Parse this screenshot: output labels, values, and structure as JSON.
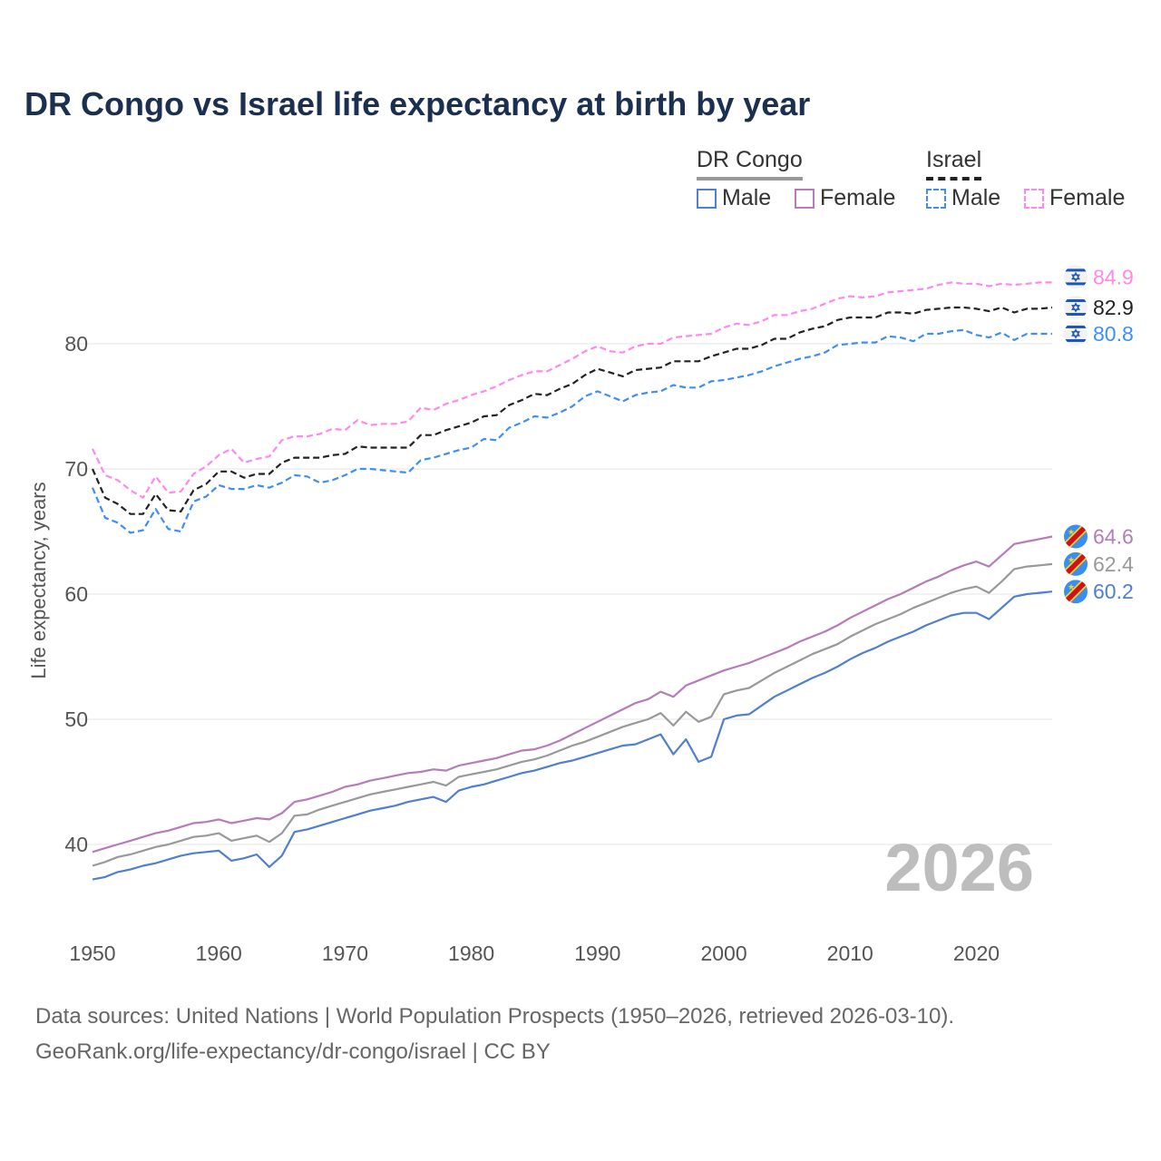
{
  "chart_data": {
    "type": "line",
    "title": "DR Congo vs Israel life expectancy at birth by year",
    "xlabel": "",
    "ylabel": "Life expectancy, years",
    "xlim": [
      1950,
      2026
    ],
    "ylim": [
      35,
      87
    ],
    "x_ticks": [
      1950,
      1960,
      1970,
      1980,
      1990,
      2000,
      2010,
      2020
    ],
    "y_ticks": [
      40,
      50,
      60,
      70,
      80
    ],
    "grid": true,
    "legend_placement": "top-right",
    "legend": {
      "groups": [
        {
          "name": "DR Congo",
          "items": [
            "Male",
            "Female"
          ]
        },
        {
          "name": "Israel",
          "items": [
            "Male",
            "Female"
          ]
        }
      ]
    },
    "watermark_year": "2026",
    "x_start": 1950,
    "series": [
      {
        "name": "DR Congo Female",
        "country": "DR Congo",
        "flag": "drc",
        "dashed": false,
        "color": "#b67bb9",
        "end_label": "64.6",
        "values": [
          39.4,
          39.7,
          40.0,
          40.3,
          40.6,
          40.9,
          41.1,
          41.4,
          41.7,
          41.8,
          42.0,
          41.7,
          41.9,
          42.1,
          42.0,
          42.5,
          43.4,
          43.6,
          43.9,
          44.2,
          44.6,
          44.8,
          45.1,
          45.3,
          45.5,
          45.7,
          45.8,
          46.0,
          45.9,
          46.3,
          46.5,
          46.7,
          46.9,
          47.2,
          47.5,
          47.6,
          47.9,
          48.3,
          48.8,
          49.3,
          49.8,
          50.3,
          50.8,
          51.3,
          51.6,
          52.2,
          51.8,
          52.7,
          53.1,
          53.5,
          53.9,
          54.2,
          54.5,
          54.9,
          55.3,
          55.7,
          56.2,
          56.6,
          57.0,
          57.5,
          58.1,
          58.6,
          59.1,
          59.6,
          60.0,
          60.5,
          61.0,
          61.4,
          61.9,
          62.3,
          62.6,
          62.2,
          63.1,
          64.0,
          64.2,
          64.4,
          64.6
        ]
      },
      {
        "name": "DR Congo Total",
        "country": "DR Congo",
        "flag": "drc",
        "dashed": false,
        "color": "#999999",
        "end_label": "62.4",
        "values": [
          38.3,
          38.6,
          39.0,
          39.2,
          39.5,
          39.8,
          40.0,
          40.3,
          40.6,
          40.7,
          40.9,
          40.3,
          40.5,
          40.7,
          40.2,
          40.9,
          42.3,
          42.4,
          42.8,
          43.1,
          43.4,
          43.7,
          44.0,
          44.2,
          44.4,
          44.6,
          44.8,
          45.0,
          44.7,
          45.4,
          45.6,
          45.8,
          46.0,
          46.3,
          46.6,
          46.8,
          47.1,
          47.5,
          47.9,
          48.2,
          48.6,
          49.0,
          49.4,
          49.7,
          50.0,
          50.5,
          49.5,
          50.6,
          49.8,
          50.2,
          52.0,
          52.3,
          52.5,
          53.1,
          53.7,
          54.2,
          54.7,
          55.2,
          55.6,
          56.0,
          56.6,
          57.1,
          57.6,
          58.0,
          58.4,
          58.9,
          59.3,
          59.7,
          60.1,
          60.4,
          60.6,
          60.1,
          61.0,
          62.0,
          62.2,
          62.3,
          62.4
        ]
      },
      {
        "name": "DR Congo Male",
        "country": "DR Congo",
        "flag": "drc",
        "dashed": false,
        "color": "#4f7fce",
        "end_label": "60.2",
        "values": [
          37.2,
          37.4,
          37.8,
          38.0,
          38.3,
          38.5,
          38.8,
          39.1,
          39.3,
          39.4,
          39.5,
          38.7,
          38.9,
          39.2,
          38.2,
          39.1,
          41.0,
          41.2,
          41.5,
          41.8,
          42.1,
          42.4,
          42.7,
          42.9,
          43.1,
          43.4,
          43.6,
          43.8,
          43.4,
          44.3,
          44.6,
          44.8,
          45.1,
          45.4,
          45.7,
          45.9,
          46.2,
          46.5,
          46.7,
          47.0,
          47.3,
          47.6,
          47.9,
          48.0,
          48.4,
          48.8,
          47.2,
          48.4,
          46.6,
          47.0,
          50.0,
          50.3,
          50.4,
          51.1,
          51.8,
          52.3,
          52.8,
          53.3,
          53.7,
          54.2,
          54.8,
          55.3,
          55.7,
          56.2,
          56.6,
          57.0,
          57.5,
          57.9,
          58.3,
          58.5,
          58.5,
          58.0,
          58.9,
          59.8,
          60.0,
          60.1,
          60.2
        ]
      },
      {
        "name": "Israel Female",
        "country": "Israel",
        "flag": "israel",
        "dashed": true,
        "color": "#ff88ee",
        "end_label": "84.9",
        "values": [
          71.6,
          69.5,
          69.1,
          68.3,
          67.7,
          69.4,
          68.1,
          68.2,
          69.6,
          70.2,
          71.1,
          71.6,
          70.5,
          70.8,
          71.0,
          72.3,
          72.6,
          72.6,
          72.8,
          73.2,
          73.1,
          73.9,
          73.5,
          73.6,
          73.6,
          73.8,
          74.9,
          74.7,
          75.2,
          75.5,
          75.9,
          76.2,
          76.6,
          77.1,
          77.5,
          77.8,
          77.8,
          78.3,
          78.8,
          79.4,
          79.8,
          79.4,
          79.3,
          79.8,
          80.0,
          80.0,
          80.5,
          80.6,
          80.7,
          80.8,
          81.3,
          81.6,
          81.5,
          81.8,
          82.3,
          82.3,
          82.6,
          82.8,
          83.2,
          83.6,
          83.8,
          83.7,
          83.8,
          84.1,
          84.2,
          84.3,
          84.4,
          84.7,
          84.9,
          84.8,
          84.8,
          84.6,
          84.8,
          84.7,
          84.8,
          84.9,
          84.9
        ]
      },
      {
        "name": "Israel Total",
        "country": "Israel",
        "flag": "israel",
        "dashed": true,
        "color": "#222222",
        "end_label": "82.9",
        "values": [
          70.0,
          67.7,
          67.2,
          66.4,
          66.4,
          68.0,
          66.7,
          66.6,
          68.3,
          68.8,
          69.8,
          69.8,
          69.3,
          69.6,
          69.6,
          70.5,
          70.9,
          70.9,
          70.9,
          71.1,
          71.2,
          71.8,
          71.7,
          71.7,
          71.7,
          71.7,
          72.7,
          72.7,
          73.1,
          73.4,
          73.7,
          74.2,
          74.3,
          75.1,
          75.5,
          76.0,
          75.9,
          76.4,
          76.8,
          77.5,
          78.0,
          77.7,
          77.4,
          77.9,
          78.0,
          78.1,
          78.6,
          78.6,
          78.6,
          79.0,
          79.3,
          79.6,
          79.6,
          79.9,
          80.4,
          80.4,
          80.9,
          81.2,
          81.4,
          81.9,
          82.1,
          82.1,
          82.1,
          82.5,
          82.5,
          82.4,
          82.7,
          82.8,
          82.9,
          82.9,
          82.8,
          82.6,
          82.9,
          82.5,
          82.8,
          82.8,
          82.9
        ]
      },
      {
        "name": "Israel Male",
        "country": "Israel",
        "flag": "israel",
        "dashed": true,
        "color": "#3d8ef5",
        "end_label": "80.8",
        "values": [
          68.5,
          66.1,
          65.7,
          64.9,
          65.1,
          66.8,
          65.2,
          65.0,
          67.4,
          67.8,
          68.7,
          68.4,
          68.4,
          68.7,
          68.5,
          68.9,
          69.5,
          69.4,
          68.9,
          69.1,
          69.5,
          70.0,
          70.0,
          69.9,
          69.8,
          69.7,
          70.7,
          70.9,
          71.2,
          71.5,
          71.7,
          72.4,
          72.3,
          73.3,
          73.7,
          74.2,
          74.1,
          74.5,
          75.0,
          75.8,
          76.2,
          75.8,
          75.4,
          75.9,
          76.1,
          76.2,
          76.7,
          76.5,
          76.5,
          77.0,
          77.1,
          77.3,
          77.5,
          77.8,
          78.2,
          78.5,
          78.8,
          79.0,
          79.3,
          79.9,
          80.0,
          80.1,
          80.1,
          80.6,
          80.5,
          80.2,
          80.8,
          80.8,
          81.0,
          81.1,
          80.7,
          80.5,
          80.9,
          80.3,
          80.8,
          80.8,
          80.8
        ]
      }
    ]
  },
  "legend": {
    "drc_label": "DR Congo",
    "israel_label": "Israel",
    "male_label": "Male",
    "female_label": "Female",
    "colors": {
      "drc_male": "#4f7fce",
      "drc_female": "#b67bb9",
      "israel_male": "#3d8ef5",
      "israel_female": "#ff88ee"
    }
  },
  "footer": {
    "line1": "Data sources: United Nations | World Population Prospects (1950–2026, retrieved 2026-03-10).",
    "line2": "GeoRank.org/life-expectancy/dr-congo/israel | CC BY"
  }
}
